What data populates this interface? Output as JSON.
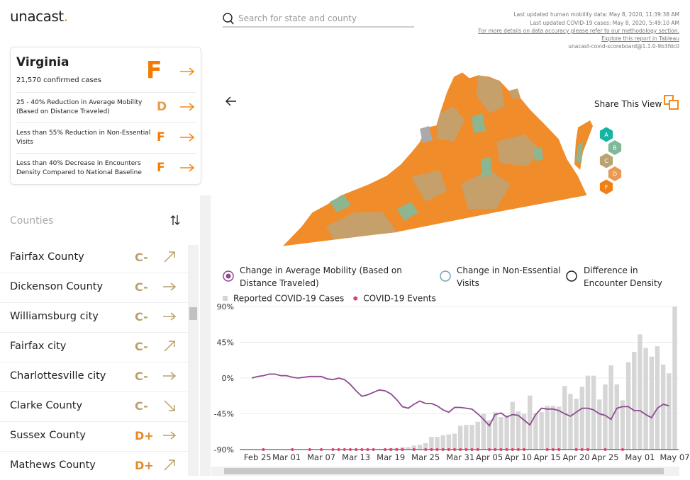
{
  "header": {
    "logo": "unacast",
    "logo_dot": ".",
    "search_placeholder": "Search for state and county",
    "updates": [
      "Last updated human mobility data: May 8, 2020, 11:39:38 AM",
      "Last updated COVID-19 cases: May 8, 2020, 5:49:10 AM",
      "For more details on data accuracy please refer to our methodology section.",
      "Explore this report in Tableau",
      "unacast-covid-scoreboard@1.1.0-9b3fdc0"
    ]
  },
  "scorecard": {
    "state": "Virginia",
    "cases": "21,570 confirmed cases",
    "grade": "F",
    "metrics": [
      {
        "label": "25 - 40% Reduction in Average Mobility (Based on Distance Traveled)",
        "grade": "D"
      },
      {
        "label": "Less than 55% Reduction in Non-Essential Visits",
        "grade": "F"
      },
      {
        "label": "Less than 40% Decrease in Encounters Density Compared to National Baseline",
        "grade": "F"
      }
    ]
  },
  "counties": {
    "title": "Counties",
    "rows": [
      {
        "name": "Fairfax County",
        "grade": "C-"
      },
      {
        "name": "Dickenson County",
        "grade": "C-"
      },
      {
        "name": "Williamsburg city",
        "grade": "C-"
      },
      {
        "name": "Fairfax city",
        "grade": "C-"
      },
      {
        "name": "Charlottesville city",
        "grade": "C-"
      },
      {
        "name": "Clarke County",
        "grade": "C-"
      },
      {
        "name": "Sussex County",
        "grade": "D+"
      },
      {
        "name": "Mathews County",
        "grade": "D+"
      }
    ]
  },
  "map": {
    "share": "Share This View",
    "legend": [
      "A",
      "B",
      "C",
      "D",
      "F"
    ]
  },
  "chart_data": {
    "type": "combo",
    "metric_options": [
      "Change in Average Mobility (Based on Distance Traveled)",
      "Change in Non-Essential Visits",
      "Difference in Encounter Density"
    ],
    "categories": [
      null,
      "Feb 25",
      null,
      null,
      null,
      null,
      "Mar 01",
      null,
      null,
      null,
      null,
      null,
      "Mar 07",
      null,
      null,
      null,
      null,
      null,
      "Mar 13",
      null,
      null,
      null,
      null,
      null,
      "Mar 19",
      null,
      null,
      null,
      null,
      null,
      "Mar 25",
      null,
      null,
      null,
      null,
      null,
      "Mar 31",
      null,
      null,
      null,
      null,
      "Apr 05",
      null,
      null,
      null,
      null,
      "Apr 10",
      null,
      null,
      null,
      null,
      "Apr 15",
      null,
      null,
      null,
      null,
      "Apr 20",
      null,
      null,
      null,
      null,
      "Apr 25",
      null,
      null,
      null,
      null,
      null,
      "May 01",
      null,
      null,
      null,
      null,
      null,
      "May 07"
    ],
    "series": [
      {
        "name": "Reported COVID-19 Cases",
        "kind": "bar",
        "color": "#d6d6d6",
        "values": [
          null,
          null,
          null,
          null,
          null,
          null,
          null,
          null,
          null,
          null,
          null,
          null,
          null,
          null,
          null,
          null,
          null,
          null,
          null,
          null,
          null,
          null,
          -89,
          -89,
          -88,
          -88,
          -87,
          -87,
          -85,
          -84,
          -82,
          -74,
          -74,
          -72,
          -71,
          -70,
          -60,
          -59,
          -59,
          -55,
          -45,
          -53,
          -43,
          -49,
          -47,
          -30,
          -42,
          -45,
          -22,
          -44,
          -43,
          -35,
          -35,
          -36,
          -10,
          -20,
          -26,
          -11,
          3,
          3,
          -27,
          -8,
          16,
          -8,
          -28,
          20,
          33,
          55,
          38,
          27,
          40,
          17,
          6,
          90
        ]
      },
      {
        "name": "COVID-19 Events",
        "kind": "dot",
        "color": "#d9456b",
        "values": [
          null,
          null,
          -90,
          null,
          null,
          null,
          null,
          -90,
          null,
          null,
          -90,
          null,
          -90,
          null,
          -90,
          -90,
          -90,
          -90,
          -90,
          -90,
          -90,
          -90,
          null,
          -90,
          -90,
          -90,
          -90,
          null,
          -90,
          null,
          -90,
          -90,
          -90,
          -90,
          -90,
          -90,
          -90,
          -90,
          -90,
          -90,
          null,
          -90,
          -90,
          -90,
          -90,
          -90,
          -90,
          -90,
          null,
          null,
          null,
          -90,
          -90,
          -90,
          null,
          null,
          -90,
          -90,
          -90,
          null,
          null,
          -90,
          null,
          null,
          -90,
          null,
          null,
          null,
          null,
          null,
          null,
          null,
          null,
          null
        ]
      },
      {
        "kind": "line",
        "color": "#8e4a8f",
        "values": [
          0,
          2,
          3,
          5,
          5,
          3,
          3,
          1,
          0,
          1,
          2,
          2,
          2,
          -1,
          -2,
          0,
          -2,
          -8,
          -16,
          -23,
          -21,
          -18,
          -15,
          -16,
          -20,
          -27,
          -36,
          -38,
          -33,
          -29,
          -32,
          -32,
          -35,
          -40,
          -43,
          -37,
          -37,
          -38,
          -39,
          -45,
          -52,
          -60,
          -46,
          -44,
          -49,
          -46,
          -47,
          -53,
          -59,
          -46,
          -38,
          -39,
          -39,
          -41,
          -45,
          -48,
          -43,
          -38,
          -38,
          -40,
          -45,
          -47,
          -52,
          -38,
          -36,
          -36,
          -41,
          -41,
          -46,
          -50,
          -38,
          -33,
          -35,
          null
        ]
      }
    ],
    "ylim": [
      -90,
      90
    ],
    "yticks": [
      {
        "value": -90,
        "label": "-90%"
      },
      {
        "value": -45,
        "label": "-45%"
      },
      {
        "value": 0,
        "label": "0%"
      },
      {
        "value": 45,
        "label": "45%"
      },
      {
        "value": 90,
        "label": "90%"
      }
    ],
    "grid": true
  }
}
